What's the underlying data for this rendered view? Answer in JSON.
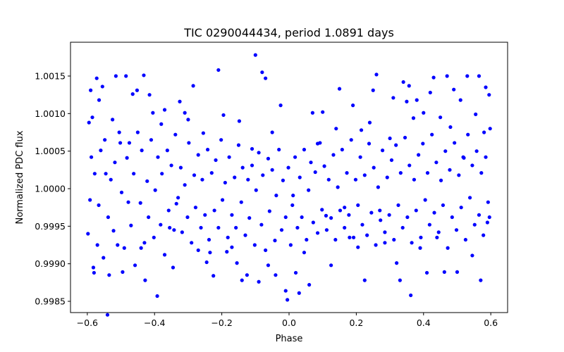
{
  "chart_data": {
    "type": "scatter",
    "title": "TIC 0290044434, period 1.0891 days",
    "xlabel": "Phase",
    "ylabel": "Normalized PDC flux",
    "xlim": [
      -0.65,
      0.65
    ],
    "ylim": [
      0.99835,
      1.00195
    ],
    "x_ticks": [
      -0.6,
      -0.4,
      -0.2,
      0.0,
      0.2,
      0.4,
      0.6
    ],
    "x_tick_labels": [
      "−0.6",
      "−0.4",
      "−0.2",
      "0.0",
      "0.2",
      "0.4",
      "0.6"
    ],
    "y_ticks": [
      0.9985,
      0.999,
      0.9995,
      1.0,
      1.0005,
      1.001,
      1.0015
    ],
    "y_tick_labels": [
      "0.9985",
      "0.9990",
      "0.9995",
      "1.0000",
      "1.0005",
      "1.0010",
      "1.0015"
    ],
    "grid": false,
    "marker_color": "#0000ff",
    "series": [
      {
        "points": [
          [
            -0.595,
            1.00088
          ],
          [
            -0.59,
            1.00131
          ],
          [
            -0.585,
            1.00095
          ],
          [
            -0.58,
            0.99888
          ],
          [
            -0.572,
            1.00147
          ],
          [
            -0.565,
            1.00118
          ],
          [
            -0.555,
            1.00136
          ],
          [
            -0.548,
            1.00065
          ],
          [
            -0.54,
            0.99832
          ],
          [
            -0.535,
            0.99885
          ],
          [
            -0.525,
            1.00092
          ],
          [
            -0.515,
            1.0015
          ],
          [
            -0.505,
            1.00075
          ],
          [
            -0.495,
            0.99889
          ],
          [
            -0.485,
            1.0015
          ],
          [
            -0.475,
            1.00061
          ],
          [
            -0.465,
            1.00126
          ],
          [
            -0.452,
            1.00131
          ],
          [
            -0.44,
            0.99921
          ],
          [
            -0.432,
            1.00151
          ],
          [
            -0.428,
            0.99878
          ],
          [
            -0.415,
            1.00125
          ],
          [
            -0.405,
            1.00101
          ],
          [
            -0.392,
            0.99857
          ],
          [
            -0.38,
            1.00086
          ],
          [
            -0.37,
            1.00105
          ],
          [
            -0.355,
            0.99948
          ],
          [
            -0.345,
            0.99895
          ],
          [
            -0.335,
            0.9998
          ],
          [
            -0.325,
            1.00116
          ],
          [
            -0.31,
            1.00101
          ],
          [
            -0.3,
            1.00092
          ],
          [
            -0.285,
            1.00137
          ],
          [
            -0.27,
            0.99918
          ],
          [
            -0.255,
            1.00074
          ],
          [
            -0.245,
            0.99902
          ],
          [
            -0.235,
            0.99915
          ],
          [
            -0.225,
            0.99884
          ],
          [
            -0.21,
            1.00158
          ],
          [
            -0.195,
            1.00098
          ],
          [
            -0.185,
            0.99916
          ],
          [
            -0.17,
            0.99922
          ],
          [
            -0.155,
            0.99901
          ],
          [
            -0.148,
            1.0009
          ],
          [
            -0.14,
            0.99878
          ],
          [
            -0.125,
            0.99885
          ],
          [
            -0.11,
            1.00053
          ],
          [
            -0.1,
            1.00178
          ],
          [
            -0.09,
            0.99876
          ],
          [
            -0.08,
            1.00155
          ],
          [
            -0.07,
            1.00147
          ],
          [
            -0.062,
            0.99898
          ],
          [
            -0.05,
            1.00075
          ],
          [
            -0.04,
            0.99885
          ],
          [
            -0.025,
            1.00111
          ],
          [
            -0.01,
            0.99864
          ],
          [
            -0.005,
            0.99852
          ],
          [
            0.01,
            0.99978
          ],
          [
            0.02,
            0.99888
          ],
          [
            0.03,
            0.99861
          ],
          [
            0.045,
            0.99915
          ],
          [
            0.06,
            0.99872
          ],
          [
            0.07,
            1.00101
          ],
          [
            0.085,
            1.0006
          ],
          [
            0.1,
            1.00102
          ],
          [
            0.11,
            0.99964
          ],
          [
            0.125,
            0.99898
          ],
          [
            0.14,
            1.0008
          ],
          [
            0.15,
            1.00133
          ],
          [
            0.165,
            0.99975
          ],
          [
            0.18,
            0.99935
          ],
          [
            0.19,
            1.00111
          ],
          [
            0.205,
            0.99922
          ],
          [
            0.215,
            1.00078
          ],
          [
            0.225,
            0.99878
          ],
          [
            0.24,
            1.00088
          ],
          [
            0.25,
            1.00131
          ],
          [
            0.26,
            1.00152
          ],
          [
            0.27,
            0.99971
          ],
          [
            0.285,
            0.99928
          ],
          [
            0.3,
            1.00067
          ],
          [
            0.31,
            1.00121
          ],
          [
            0.32,
            0.99901
          ],
          [
            0.33,
            0.99878
          ],
          [
            0.34,
            1.00142
          ],
          [
            0.35,
            1.00116
          ],
          [
            0.357,
            1.00137
          ],
          [
            0.362,
            0.99858
          ],
          [
            0.37,
            1.00094
          ],
          [
            0.38,
            1.00118
          ],
          [
            0.39,
            0.99921
          ],
          [
            0.4,
            1.00101
          ],
          [
            0.41,
            0.99888
          ],
          [
            0.42,
            1.00128
          ],
          [
            0.43,
            1.00148
          ],
          [
            0.44,
            0.99935
          ],
          [
            0.45,
            1.00095
          ],
          [
            0.462,
            0.99889
          ],
          [
            0.47,
            1.0015
          ],
          [
            0.48,
            1.00082
          ],
          [
            0.49,
            1.00132
          ],
          [
            0.5,
            0.99889
          ],
          [
            0.51,
            1.00118
          ],
          [
            0.52,
            1.00041
          ],
          [
            0.53,
            1.0015
          ],
          [
            0.545,
            0.99911
          ],
          [
            0.555,
            1.00099
          ],
          [
            0.565,
            1.0015
          ],
          [
            0.57,
            0.99878
          ],
          [
            0.58,
            1.00075
          ],
          [
            0.585,
            1.00135
          ],
          [
            0.59,
            0.99955
          ],
          [
            0.595,
            1.00125
          ],
          [
            0.598,
            1.0008
          ],
          [
            -0.598,
            0.9994
          ],
          [
            -0.592,
            0.99985
          ],
          [
            -0.588,
            1.00042
          ],
          [
            -0.582,
            0.99895
          ],
          [
            -0.578,
            1.0002
          ],
          [
            -0.57,
            0.99925
          ],
          [
            -0.566,
            0.99978
          ],
          [
            -0.56,
            1.00051
          ],
          [
            -0.552,
            0.99908
          ],
          [
            -0.545,
            1.0002
          ],
          [
            -0.538,
            0.99962
          ],
          [
            -0.53,
            1.00012
          ],
          [
            -0.522,
            0.99944
          ],
          [
            -0.518,
            1.00035
          ],
          [
            -0.51,
            0.99925
          ],
          [
            -0.502,
            1.00061
          ],
          [
            -0.498,
            0.99995
          ],
          [
            -0.49,
            0.99921
          ],
          [
            -0.482,
            1.00041
          ],
          [
            -0.478,
            0.99982
          ],
          [
            -0.47,
            0.99951
          ],
          [
            -0.462,
            1.0002
          ],
          [
            -0.458,
            0.99898
          ],
          [
            -0.45,
            1.00075
          ],
          [
            -0.442,
            0.99981
          ],
          [
            -0.438,
            1.00051
          ],
          [
            -0.43,
            0.99928
          ],
          [
            -0.422,
            1.0001
          ],
          [
            -0.418,
            0.99962
          ],
          [
            -0.41,
            1.00065
          ],
          [
            -0.402,
            0.99935
          ],
          [
            -0.398,
            0.99998
          ],
          [
            -0.39,
            1.00042
          ],
          [
            -0.382,
            0.99952
          ],
          [
            -0.378,
            1.0002
          ],
          [
            -0.37,
            0.99912
          ],
          [
            -0.362,
            1.00051
          ],
          [
            -0.358,
            0.99971
          ],
          [
            -0.35,
            1.00031
          ],
          [
            -0.342,
            0.99945
          ],
          [
            -0.338,
            1.00072
          ],
          [
            -0.33,
            0.99988
          ],
          [
            -0.322,
            1.00028
          ],
          [
            -0.318,
            0.99942
          ],
          [
            -0.31,
            1.00005
          ],
          [
            -0.302,
            0.99962
          ],
          [
            -0.298,
            1.00061
          ],
          [
            -0.29,
            0.99928
          ],
          [
            -0.282,
            1.00018
          ],
          [
            -0.278,
            0.99975
          ],
          [
            -0.27,
            1.00045
          ],
          [
            -0.262,
            0.99948
          ],
          [
            -0.258,
            1.00012
          ],
          [
            -0.25,
            0.99965
          ],
          [
            -0.242,
            1.00052
          ],
          [
            -0.238,
            0.99932
          ],
          [
            -0.23,
            1.00021
          ],
          [
            -0.222,
            0.99971
          ],
          [
            -0.218,
            1.00038
          ],
          [
            -0.21,
            0.99948
          ],
          [
            -0.202,
            1.00065
          ],
          [
            -0.198,
            0.99985
          ],
          [
            -0.19,
            1.00008
          ],
          [
            -0.182,
            0.99935
          ],
          [
            -0.178,
            1.00042
          ],
          [
            -0.17,
            0.99965
          ],
          [
            -0.162,
            1.00015
          ],
          [
            -0.158,
            0.99948
          ],
          [
            -0.15,
            1.00058
          ],
          [
            -0.142,
            0.99982
          ],
          [
            -0.138,
            1.00028
          ],
          [
            -0.13,
            0.99938
          ],
          [
            -0.122,
            1.00012
          ],
          [
            -0.118,
            0.99961
          ],
          [
            -0.11,
            1.00031
          ],
          [
            -0.102,
            0.99925
          ],
          [
            -0.098,
            0.99998
          ],
          [
            -0.09,
            1.00048
          ],
          [
            -0.082,
            0.99952
          ],
          [
            -0.078,
            1.00018
          ],
          [
            -0.07,
            0.99918
          ],
          [
            -0.062,
            1.0004
          ],
          [
            -0.058,
            0.9997
          ],
          [
            -0.05,
            1.00025
          ],
          [
            -0.042,
            0.99931
          ],
          [
            -0.038,
            0.99991
          ],
          [
            -0.03,
            1.00052
          ],
          [
            -0.022,
            0.99945
          ],
          [
            -0.018,
            1.00011
          ],
          [
            -0.01,
            0.99962
          ],
          [
            -0.002,
            1.00028
          ],
          [
            0.005,
            0.99925
          ],
          [
            0.012,
            0.99991
          ],
          [
            0.018,
            1.00042
          ],
          [
            0.025,
            0.99948
          ],
          [
            0.032,
            1.00015
          ],
          [
            0.038,
            0.99962
          ],
          [
            0.045,
            1.00052
          ],
          [
            0.052,
            0.99932
          ],
          [
            0.058,
            0.99998
          ],
          [
            0.065,
            1.00035
          ],
          [
            0.072,
            0.99955
          ],
          [
            0.078,
            1.00022
          ],
          [
            0.085,
            0.99941
          ],
          [
            0.092,
            1.00061
          ],
          [
            0.098,
            0.99972
          ],
          [
            0.105,
            1.0003
          ],
          [
            0.112,
            0.99945
          ],
          [
            0.118,
            1.00012
          ],
          [
            0.125,
            0.99961
          ],
          [
            0.132,
            1.00045
          ],
          [
            0.138,
            0.99932
          ],
          [
            0.145,
            1.00002
          ],
          [
            0.152,
            0.99971
          ],
          [
            0.158,
            1.00052
          ],
          [
            0.165,
            0.99948
          ],
          [
            0.172,
            1.00021
          ],
          [
            0.178,
            0.99965
          ],
          [
            0.185,
            1.00065
          ],
          [
            0.192,
            0.99935
          ],
          [
            0.198,
            1.00012
          ],
          [
            0.205,
            0.99978
          ],
          [
            0.212,
            1.00042
          ],
          [
            0.218,
            0.99952
          ],
          [
            0.225,
            1.00018
          ],
          [
            0.232,
            0.99938
          ],
          [
            0.238,
            1.0006
          ],
          [
            0.245,
            0.99968
          ],
          [
            0.252,
            1.00028
          ],
          [
            0.258,
            0.99925
          ],
          [
            0.265,
            1.00002
          ],
          [
            0.272,
            0.99958
          ],
          [
            0.278,
            1.00051
          ],
          [
            0.285,
            0.99942
          ],
          [
            0.292,
            1.00015
          ],
          [
            0.298,
            0.99965
          ],
          [
            0.305,
            1.00038
          ],
          [
            0.312,
            0.99932
          ],
          [
            0.318,
            1.00058
          ],
          [
            0.325,
            0.99978
          ],
          [
            0.332,
            1.00021
          ],
          [
            0.338,
            0.99948
          ],
          [
            0.345,
            1.00068
          ],
          [
            0.352,
            0.99962
          ],
          [
            0.358,
            1.00031
          ],
          [
            0.365,
            0.99928
          ],
          [
            0.372,
            1.00012
          ],
          [
            0.378,
            0.99971
          ],
          [
            0.385,
            1.00045
          ],
          [
            0.392,
            0.99935
          ],
          [
            0.398,
            1.0006
          ],
          [
            0.405,
            0.99985
          ],
          [
            0.412,
            1.00021
          ],
          [
            0.418,
            0.99952
          ],
          [
            0.425,
            1.00072
          ],
          [
            0.432,
            0.99968
          ],
          [
            0.438,
            1.00035
          ],
          [
            0.445,
            0.99942
          ],
          [
            0.452,
            1.00011
          ],
          [
            0.458,
            0.99978
          ],
          [
            0.465,
            1.0005
          ],
          [
            0.472,
            0.99921
          ],
          [
            0.478,
            1.00025
          ],
          [
            0.485,
            0.99962
          ],
          [
            0.492,
            1.00061
          ],
          [
            0.498,
            0.99945
          ],
          [
            0.505,
            1.00018
          ],
          [
            0.512,
            0.99975
          ],
          [
            0.518,
            1.00042
          ],
          [
            0.525,
            0.99932
          ],
          [
            0.532,
            1.00072
          ],
          [
            0.538,
            0.99988
          ],
          [
            0.545,
            1.00031
          ],
          [
            0.552,
            0.99952
          ],
          [
            0.558,
            1.0005
          ],
          [
            0.565,
            0.99965
          ],
          [
            0.572,
            1.00021
          ],
          [
            0.578,
            0.99938
          ],
          [
            0.585,
            1.00042
          ],
          [
            0.592,
            0.99982
          ],
          [
            0.596,
            0.99962
          ]
        ]
      }
    ]
  }
}
